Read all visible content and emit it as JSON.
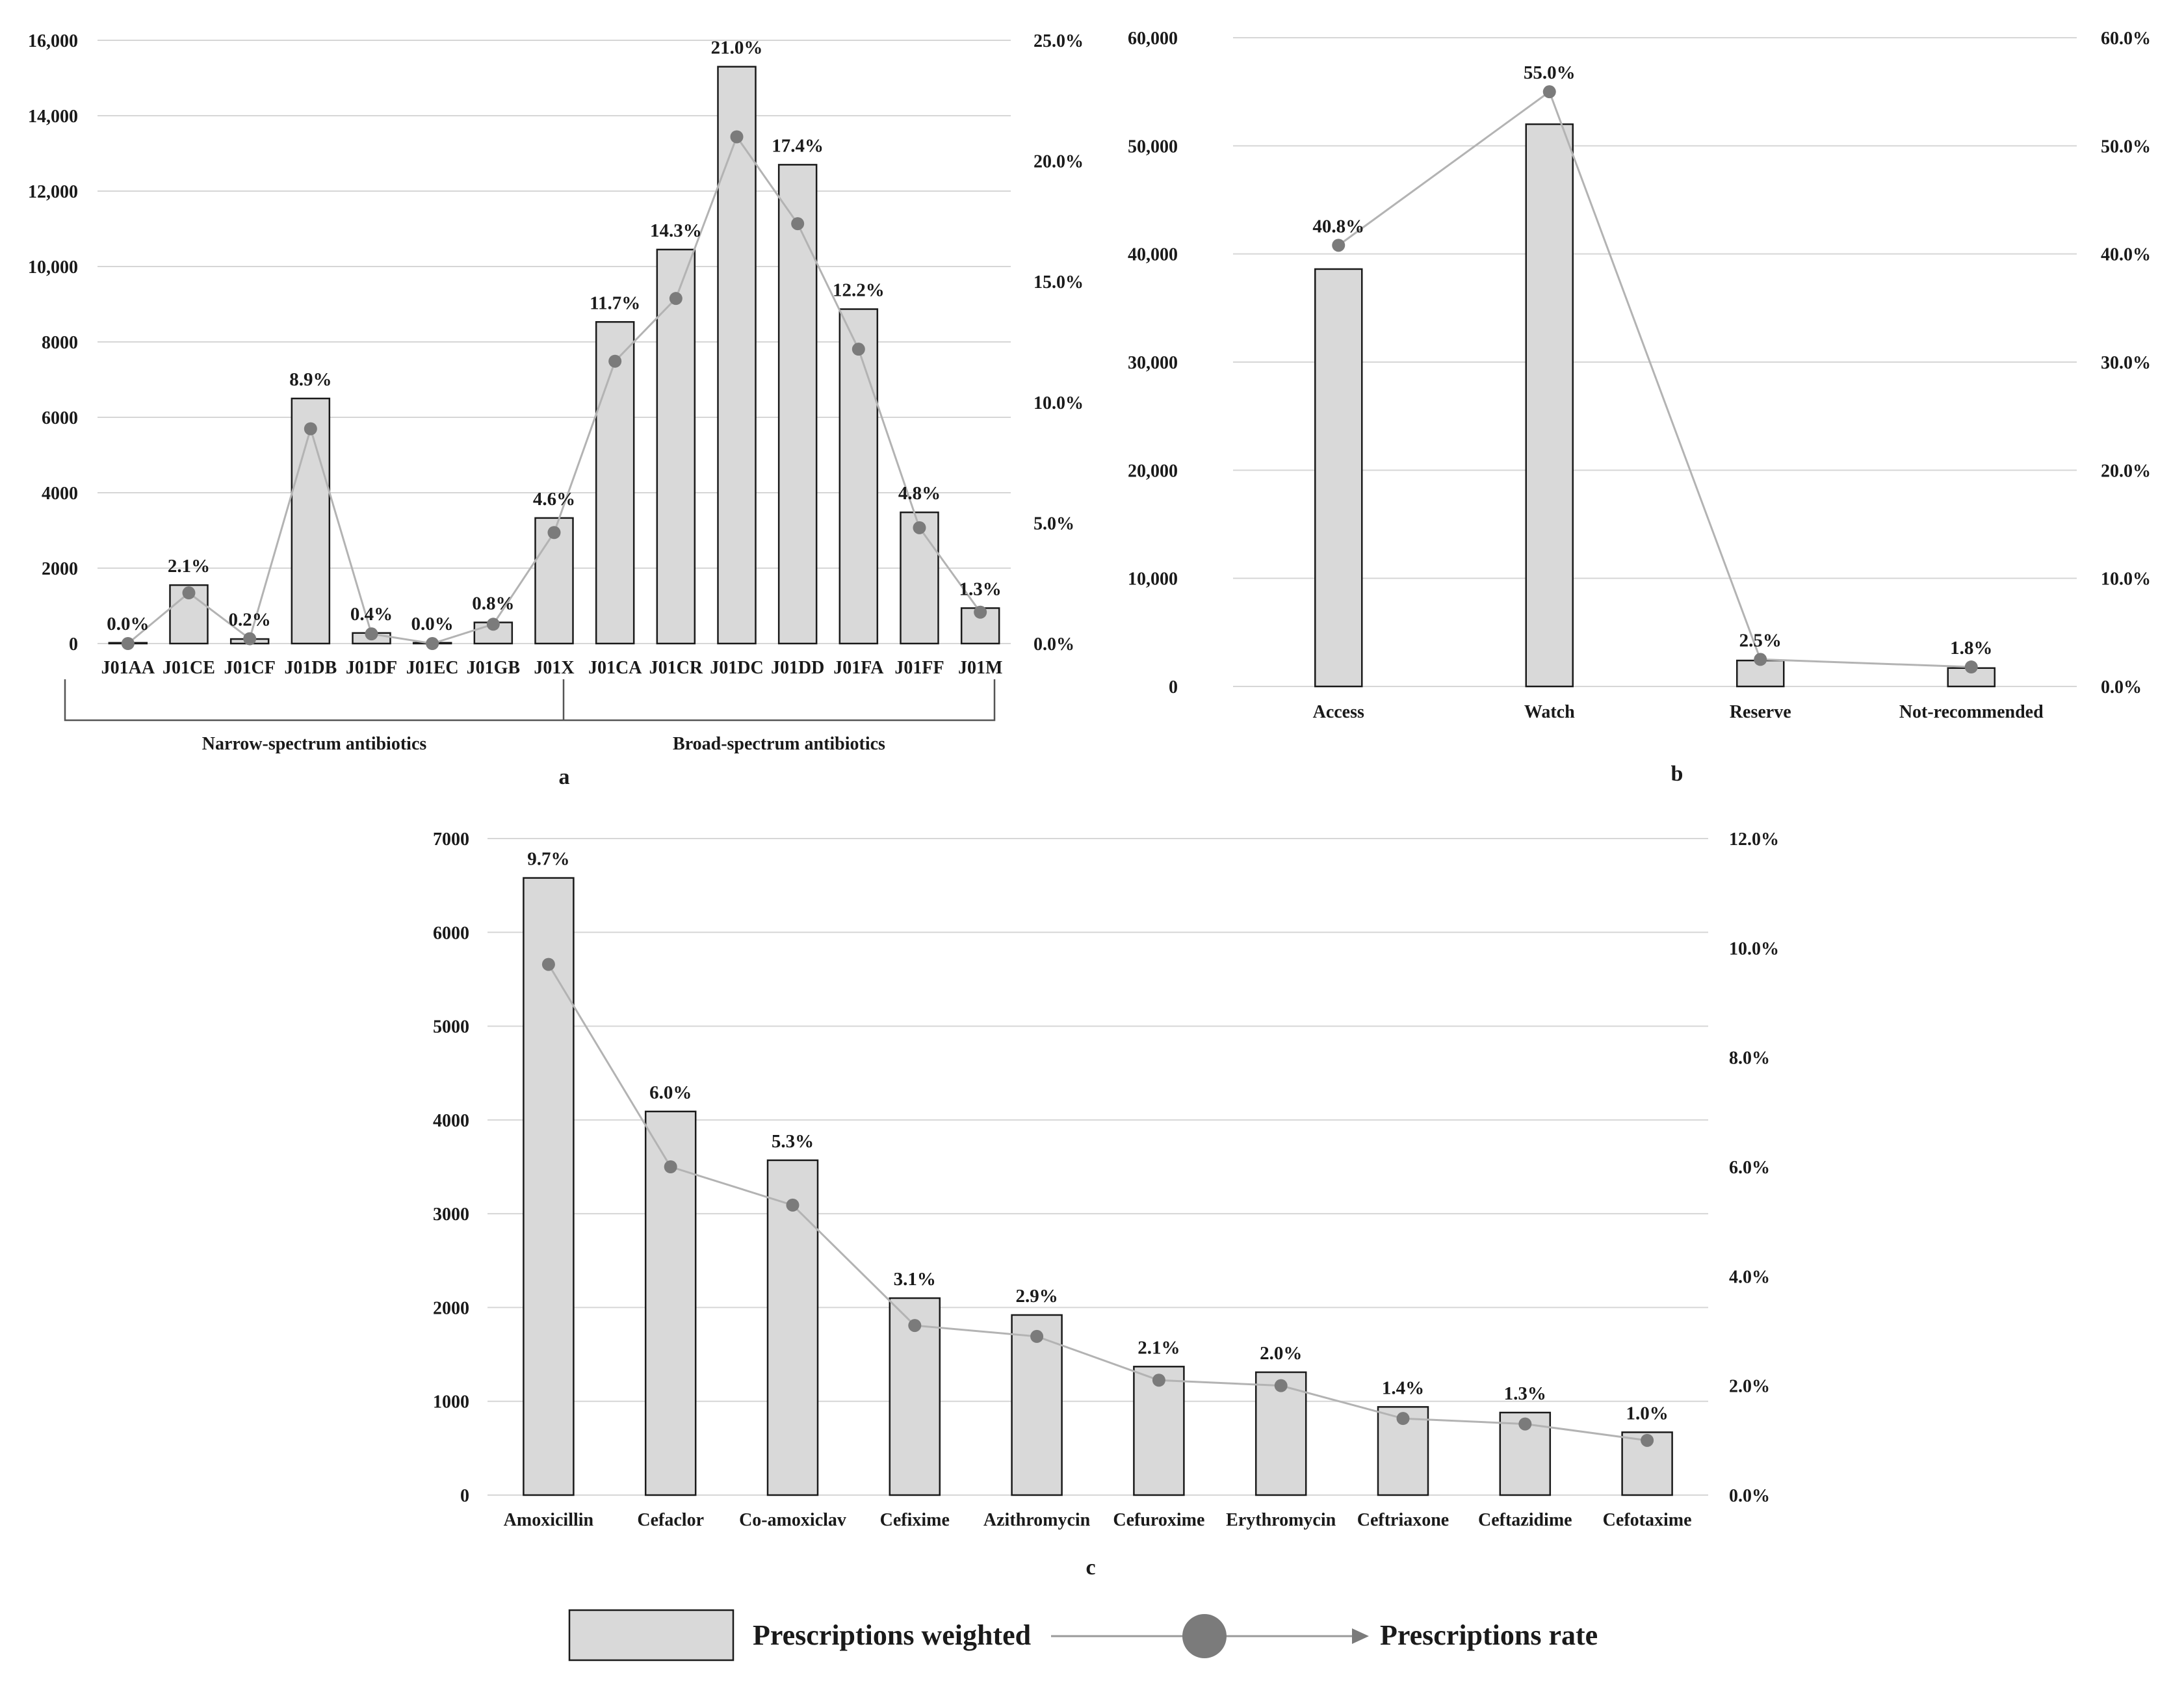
{
  "chart_data": [
    {
      "id": "a",
      "type": "bar",
      "panel_label": "a",
      "categories": [
        "J01AA",
        "J01CE",
        "J01CF",
        "J01DB",
        "J01DF",
        "J01EC",
        "J01GB",
        "J01X",
        "J01CA",
        "J01CR",
        "J01DC",
        "J01DD",
        "J01FA",
        "J01FF",
        "J01M"
      ],
      "series": [
        {
          "name": "Prescriptions weighted",
          "axis": "left",
          "values": [
            20,
            1550,
            120,
            6500,
            280,
            20,
            560,
            3330,
            8530,
            10450,
            15300,
            12700,
            8870,
            3480,
            940
          ]
        },
        {
          "name": "Prescriptions rate",
          "axis": "right",
          "values": [
            0.0,
            2.1,
            0.2,
            8.9,
            0.4,
            0.0,
            0.8,
            4.6,
            11.7,
            14.3,
            21.0,
            17.4,
            12.2,
            4.8,
            1.3
          ],
          "labels": [
            "0.0%",
            "2.1%",
            "0.2%",
            "8.9%",
            "0.4%",
            "0.0%",
            "0.8%",
            "4.6%",
            "11.7%",
            "14.3%",
            "21.0%",
            "17.4%",
            "12.2%",
            "4.8%",
            "1.3%"
          ]
        }
      ],
      "ylim": [
        0,
        16000
      ],
      "y2lim": [
        0,
        25
      ],
      "y_ticks": [
        "0",
        "2000",
        "4000",
        "6000",
        "8000",
        "10,000",
        "12,000",
        "14,000",
        "16,000"
      ],
      "y2_ticks": [
        "0.0%",
        "5.0%",
        "10.0%",
        "15.0%",
        "20.0%",
        "25.0%"
      ],
      "groups": [
        {
          "label": "Narrow-spectrum antibiotics",
          "from": 0,
          "to": 7
        },
        {
          "label": "Broad-spectrum antibiotics",
          "from": 8,
          "to": 14
        }
      ]
    },
    {
      "id": "b",
      "type": "bar",
      "panel_label": "b",
      "categories": [
        "Access",
        "Watch",
        "Reserve",
        "Not-recommended"
      ],
      "series": [
        {
          "name": "Prescriptions weighted",
          "axis": "left",
          "values": [
            38600,
            52000,
            2400,
            1700
          ]
        },
        {
          "name": "Prescriptions rate",
          "axis": "right",
          "values": [
            40.8,
            55.0,
            2.5,
            1.8
          ],
          "labels": [
            "40.8%",
            "55.0%",
            "2.5%",
            "1.8%"
          ]
        }
      ],
      "ylim": [
        0,
        60000
      ],
      "y2lim": [
        0,
        60
      ],
      "y_ticks": [
        "0",
        "10,000",
        "20,000",
        "30,000",
        "40,000",
        "50,000",
        "60,000"
      ],
      "y2_ticks": [
        "0.0%",
        "10.0%",
        "20.0%",
        "30.0%",
        "40.0%",
        "50.0%",
        "60.0%"
      ]
    },
    {
      "id": "c",
      "type": "bar",
      "panel_label": "c",
      "categories": [
        "Amoxicillin",
        "Cefaclor",
        "Co-amoxiclav",
        "Cefixime",
        "Azithromycin",
        "Cefuroxime",
        "Erythromycin",
        "Ceftriaxone",
        "Ceftazidime",
        "Cefotaxime"
      ],
      "series": [
        {
          "name": "Prescriptions weighted",
          "axis": "left",
          "values": [
            6580,
            4090,
            3570,
            2100,
            1920,
            1370,
            1310,
            940,
            880,
            670
          ]
        },
        {
          "name": "Prescriptions rate",
          "axis": "right",
          "values": [
            9.7,
            6.0,
            5.3,
            3.1,
            2.9,
            2.1,
            2.0,
            1.4,
            1.3,
            1.0
          ],
          "labels": [
            "9.7%",
            "6.0%",
            "5.3%",
            "3.1%",
            "2.9%",
            "2.1%",
            "2.0%",
            "1.4%",
            "1.3%",
            "1.0%"
          ]
        }
      ],
      "ylim": [
        0,
        7000
      ],
      "y2lim": [
        0,
        12
      ],
      "y_ticks": [
        "0",
        "1000",
        "2000",
        "3000",
        "4000",
        "5000",
        "6000",
        "7000"
      ],
      "y2_ticks": [
        "0.0%",
        "2.0%",
        "4.0%",
        "6.0%",
        "8.0%",
        "10.0%",
        "12.0%"
      ]
    }
  ],
  "legend": {
    "bar_label": "Prescriptions weighted",
    "line_label": "Prescriptions rate"
  }
}
